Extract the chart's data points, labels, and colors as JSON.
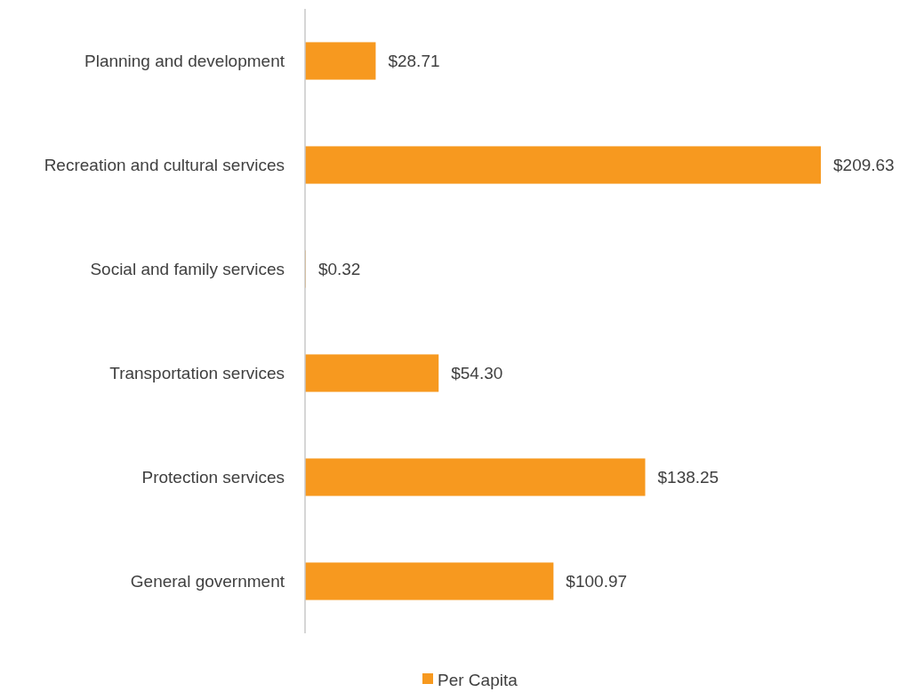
{
  "chart_data": {
    "type": "bar",
    "orientation": "horizontal",
    "categories": [
      "Planning and development",
      "Recreation and cultural services",
      "Social and family services",
      "Transportation services",
      "Protection services",
      "General government"
    ],
    "series": [
      {
        "name": "Per Capita",
        "color": "#f7991f",
        "values": [
          28.71,
          209.63,
          0.32,
          54.3,
          138.25,
          100.97
        ],
        "value_labels": [
          "$28.71",
          "$209.63",
          "$0.32",
          "$54.30",
          "$138.25",
          "$100.97"
        ]
      }
    ],
    "tick_labels": "y",
    "legend": "bottom"
  }
}
